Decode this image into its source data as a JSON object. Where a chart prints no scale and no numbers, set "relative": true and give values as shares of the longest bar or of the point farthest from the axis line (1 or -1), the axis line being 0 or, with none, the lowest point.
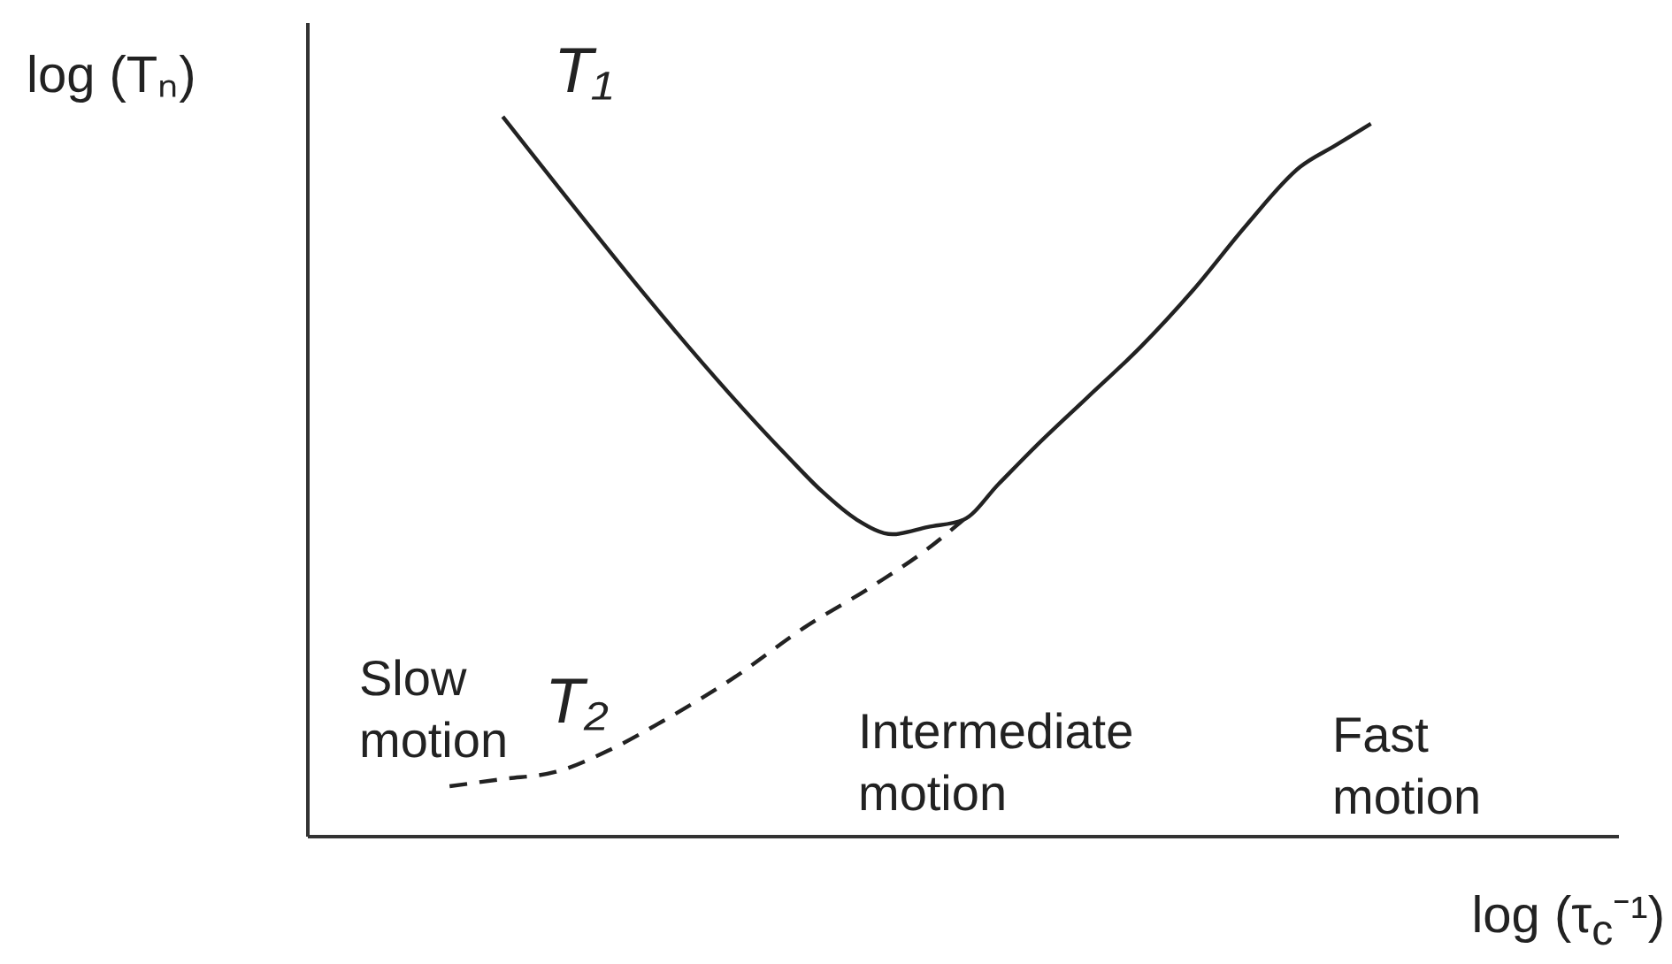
{
  "chart_data": {
    "type": "line",
    "relative": true,
    "xlabel": "log (τ$_{c}$⁻¹)",
    "ylabel": "log (Tₙ)",
    "categories": [
      null,
      null,
      null,
      null,
      null,
      null,
      null,
      null,
      null,
      null,
      null,
      null,
      null,
      null,
      null,
      null,
      null,
      null,
      null,
      null,
      null,
      null,
      null,
      null,
      null,
      null,
      null,
      null,
      null,
      null,
      null,
      null,
      null,
      null,
      null,
      null,
      null,
      null,
      null,
      null,
      null,
      null,
      null,
      null,
      null,
      null,
      null,
      null,
      null,
      null,
      null,
      null,
      null,
      null,
      null,
      null,
      null,
      null,
      null,
      null,
      null,
      null,
      null,
      null,
      null,
      null,
      null,
      null,
      null,
      null,
      null,
      null,
      null,
      null,
      null
    ],
    "series": [
      {
        "name": "T₁",
        "color": "#222222",
        "line_style": "solid",
        "values": [
          null,
          null,
          null,
          null,
          null,
          null,
          null,
          null,
          null,
          null,
          null,
          1,
          null,
          null,
          null,
          null,
          null,
          null,
          null,
          null,
          null,
          null,
          null,
          null,
          null,
          null,
          null,
          0.53,
          null,
          0.48,
          null,
          0.44,
          null,
          0.42,
          null,
          0.43,
          null,
          0.44,
          null,
          0.49,
          null,
          0.54,
          null,
          null,
          0.61,
          null,
          null,
          0.68,
          null,
          null,
          0.76,
          null,
          null,
          0.85,
          null,
          null,
          0.93,
          null,
          0.96,
          null,
          0.99,
          null,
          null,
          null,
          null,
          null,
          null,
          null,
          null,
          null,
          null,
          null,
          null,
          null,
          null
        ]
      },
      {
        "name": "T₂",
        "color": "#222222",
        "line_style": "dashed",
        "values": [
          null,
          null,
          null,
          null,
          null,
          null,
          null,
          null,
          0.07,
          null,
          null,
          0.08,
          null,
          null,
          0.09,
          null,
          null,
          0.12,
          null,
          null,
          0.16,
          null,
          null,
          null,
          0.22,
          null,
          null,
          null,
          0.29,
          null,
          null,
          null,
          0.35,
          null,
          null,
          0.4,
          null,
          0.44,
          null,
          null,
          null,
          null,
          null,
          null,
          null,
          null,
          null,
          null,
          null,
          null,
          null,
          null,
          null,
          null,
          null,
          null,
          null,
          null,
          null,
          null,
          null,
          null,
          null,
          null,
          null,
          null,
          null,
          null,
          null,
          null,
          null,
          null,
          null,
          null,
          null
        ]
      }
    ],
    "annotations": [
      "Slow motion",
      "Intermediate motion",
      "Fast motion"
    ],
    "grid": false,
    "legend": false,
    "marker": "none"
  }
}
